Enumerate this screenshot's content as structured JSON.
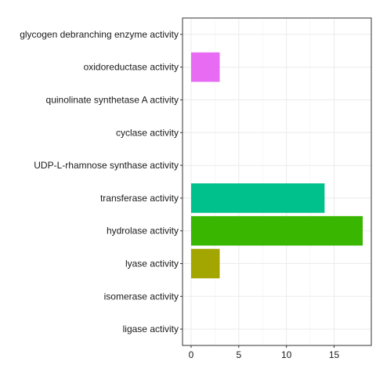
{
  "chart_data": {
    "type": "bar",
    "orientation": "horizontal",
    "categories": [
      "glycogen debranching enzyme activity",
      "oxidoreductase activity",
      "quinolinate synthetase A activity",
      "cyclase activity",
      "UDP-L-rhamnose synthase activity",
      "transferase activity",
      "hydrolase activity",
      "lyase activity",
      "isomerase activity",
      "ligase activity"
    ],
    "values": [
      0,
      3,
      0,
      0,
      0,
      14,
      18,
      3,
      0,
      0
    ],
    "colors": [
      "#F8766D",
      "#E76BF3",
      "#FF62BC",
      "#00B0F6",
      "#00BFC4",
      "#00C08B",
      "#39B600",
      "#A3A500",
      "#D89000",
      "#F8766D"
    ],
    "xlim": [
      -0.9,
      18.9
    ],
    "xticks": [
      0,
      5,
      10,
      15
    ],
    "title": "",
    "xlabel": "",
    "ylabel": "",
    "grid": true,
    "legend": "none"
  }
}
